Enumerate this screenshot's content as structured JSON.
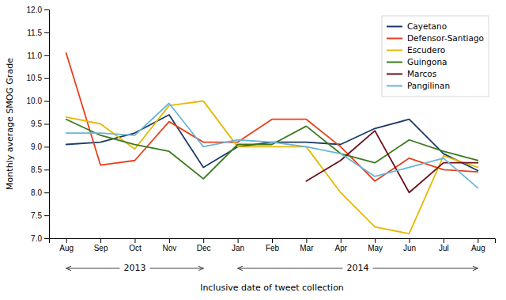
{
  "chart_data": {
    "type": "line",
    "categories": [
      "Aug",
      "Sep",
      "Oct",
      "Nov",
      "Dec",
      "Jan",
      "Feb",
      "Mar",
      "Apr",
      "May",
      "Jun",
      "Jul",
      "Aug"
    ],
    "series": [
      {
        "name": "Cayetano",
        "color": "#1b3a6b",
        "values": [
          9.05,
          9.1,
          9.3,
          9.7,
          8.55,
          9.0,
          9.1,
          9.1,
          9.05,
          9.4,
          9.6,
          8.85,
          8.48
        ]
      },
      {
        "name": "Defensor-Santiago",
        "color": "#e8401c",
        "values": [
          11.05,
          8.6,
          8.7,
          9.55,
          9.1,
          9.1,
          9.6,
          9.6,
          9.0,
          8.25,
          8.75,
          8.5,
          8.45
        ]
      },
      {
        "name": "Escudero",
        "color": "#e8b800",
        "values": [
          9.65,
          9.5,
          8.95,
          9.9,
          10.0,
          9.0,
          9.0,
          9.0,
          8.0,
          7.25,
          7.1,
          8.8,
          8.55
        ]
      },
      {
        "name": "Guingona",
        "color": "#3a7a1e",
        "values": [
          9.6,
          9.25,
          9.05,
          8.9,
          8.3,
          9.05,
          9.05,
          9.45,
          8.85,
          8.65,
          9.15,
          8.9,
          8.7
        ]
      },
      {
        "name": "Marcos",
        "color": "#6b0f1a",
        "values": [
          null,
          null,
          null,
          null,
          null,
          null,
          null,
          8.25,
          8.7,
          9.35,
          8.0,
          8.65,
          8.65
        ]
      },
      {
        "name": "Pangilinan",
        "color": "#6ab4d8",
        "values": [
          9.3,
          9.3,
          9.25,
          9.95,
          9.0,
          9.15,
          9.1,
          9.0,
          8.85,
          8.35,
          8.55,
          8.75,
          8.1
        ]
      }
    ],
    "ylim": [
      7.0,
      12.0
    ],
    "yticks": [
      {
        "value": 7,
        "label": "7.0"
      },
      {
        "value": 7.5,
        "label": "7.5"
      },
      {
        "value": 8,
        "label": "8.0"
      },
      {
        "value": 8.5,
        "label": "8.5"
      },
      {
        "value": 9,
        "label": "9.0"
      },
      {
        "value": 9.5,
        "label": "9.5"
      },
      {
        "value": 10,
        "label": "10.0"
      },
      {
        "value": 10.5,
        "label": "10.5"
      },
      {
        "value": 11,
        "label": "11.0"
      },
      {
        "value": 11.5,
        "label": "11.5"
      },
      {
        "value": 12,
        "label": "12.0"
      }
    ],
    "ylabel": "Monthly average SMOG Grade",
    "xlabel": "Inclusive date of tweet collection",
    "annotations": [
      {
        "text": "2013",
        "x_start": 0,
        "x_end": 4
      },
      {
        "text": "2014",
        "x_start": 5,
        "x_end": 12
      }
    ],
    "legend": "upper right",
    "grid": false
  }
}
